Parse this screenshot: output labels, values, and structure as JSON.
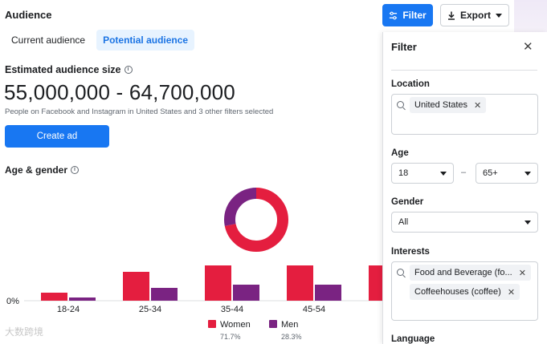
{
  "header": {
    "title": "Audience",
    "filter_label": "Filter",
    "export_label": "Export"
  },
  "tabs": [
    {
      "label": "Current audience",
      "active": false
    },
    {
      "label": "Potential audience",
      "active": true
    }
  ],
  "estimate": {
    "title": "Estimated audience size",
    "range": "55,000,000 - 64,700,000",
    "description": "People on Facebook and Instagram in United States and 3 other filters selected",
    "create_label": "Create ad"
  },
  "age_gender": {
    "title": "Age & gender"
  },
  "chart_data": {
    "type": "bar",
    "title": "Age & gender",
    "categories": [
      "18-24",
      "25-34",
      "35-44",
      "45-54",
      ""
    ],
    "series": [
      {
        "name": "Women",
        "values": [
          2.5,
          9,
          11,
          11,
          11
        ],
        "color": "#e41e3f"
      },
      {
        "name": "Men",
        "values": [
          1,
          4,
          5,
          5,
          null
        ],
        "color": "#7a2382"
      }
    ],
    "ylim": [
      0,
      20
    ],
    "ytick_label": "0%",
    "legend": [
      {
        "name": "Women",
        "percent": "71.7%",
        "color": "#e41e3f"
      },
      {
        "name": "Men",
        "percent": "28.3%",
        "color": "#7a2382"
      }
    ],
    "donut": [
      {
        "name": "Women",
        "value": 71.7,
        "color": "#e41e3f"
      },
      {
        "name": "Men",
        "value": 28.3,
        "color": "#7a2382"
      }
    ]
  },
  "filter_panel": {
    "title": "Filter",
    "location": {
      "label": "Location",
      "chips": [
        "United States"
      ]
    },
    "age": {
      "label": "Age",
      "min": "18",
      "separator": "–",
      "max": "65+"
    },
    "gender": {
      "label": "Gender",
      "value": "All"
    },
    "interests": {
      "label": "Interests",
      "chips": [
        "Food and Beverage (fo...",
        "Coffeehouses (coffee)"
      ]
    },
    "language": {
      "label": "Language"
    }
  },
  "watermark": "大数跨境",
  "colors": {
    "primary": "#1877f2",
    "women": "#e41e3f",
    "men": "#7a2382"
  }
}
